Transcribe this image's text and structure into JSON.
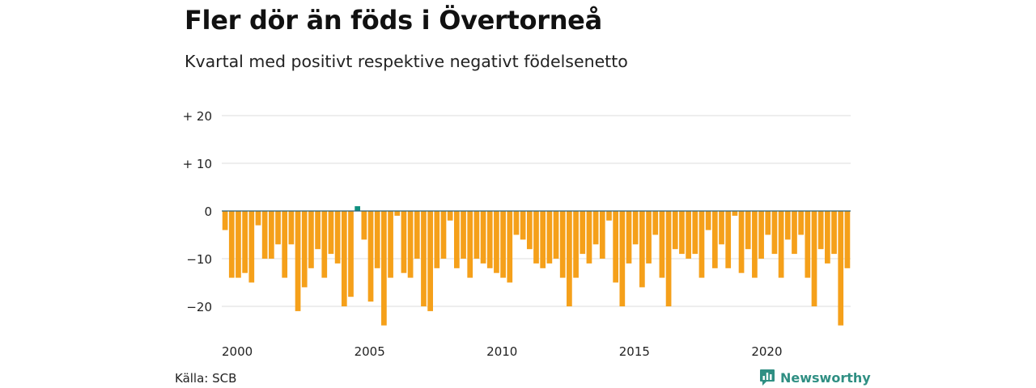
{
  "title": "Fler dör än föds i Övertorneå",
  "subtitle": "Kvartal med positivt respektive negativt födelsenetto",
  "source": "Källa: SCB",
  "brand": "Newsworthy",
  "colors": {
    "negative": "#f5a01a",
    "positive": "#0f8f80",
    "grid": "#dddddd",
    "zero_line": "#2b5f7a",
    "brand": "#2f8f83"
  },
  "chart_data": {
    "type": "bar",
    "title": "Fler dör än föds i Övertorneå",
    "subtitle": "Kvartal med positivt respektive negativt födelsenetto",
    "start_year": 2000,
    "periods_per_year": 4,
    "ylim": [
      -25,
      22
    ],
    "yticks": [
      {
        "value": 20,
        "label": "+ 20"
      },
      {
        "value": 10,
        "label": "+ 10"
      },
      {
        "value": 0,
        "label": "0"
      },
      {
        "value": -10,
        "label": "−10"
      },
      {
        "value": -20,
        "label": "−20"
      }
    ],
    "xticks": [
      {
        "year": 2000,
        "label": "2000"
      },
      {
        "year": 2005,
        "label": "2005"
      },
      {
        "year": 2010,
        "label": "2010"
      },
      {
        "year": 2015,
        "label": "2015"
      },
      {
        "year": 2020,
        "label": "2020"
      }
    ],
    "grid": true,
    "legend": "none",
    "values": [
      -4,
      -14,
      -14,
      -13,
      -15,
      -3,
      -10,
      -10,
      -7,
      -14,
      -7,
      -21,
      -16,
      -12,
      -8,
      -14,
      -9,
      -11,
      -20,
      -18,
      1,
      -6,
      -19,
      -12,
      -24,
      -14,
      -1,
      -13,
      -14,
      -10,
      -20,
      -21,
      -12,
      -10,
      -2,
      -12,
      -10,
      -14,
      -10,
      -11,
      -12,
      -13,
      -14,
      -15,
      -5,
      -6,
      -8,
      -11,
      -12,
      -11,
      -10,
      -14,
      -20,
      -14,
      -9,
      -11,
      -7,
      -10,
      -2,
      -15,
      -20,
      -11,
      -7,
      -16,
      -11,
      -5,
      -14,
      -20,
      -8,
      -9,
      -10,
      -9,
      -14,
      -4,
      -12,
      -7,
      -12,
      -1,
      -13,
      -8,
      -14,
      -10,
      -5,
      -9,
      -14,
      -6,
      -9,
      -5,
      -14,
      -20,
      -8,
      -11,
      -9,
      -24,
      -12
    ]
  }
}
